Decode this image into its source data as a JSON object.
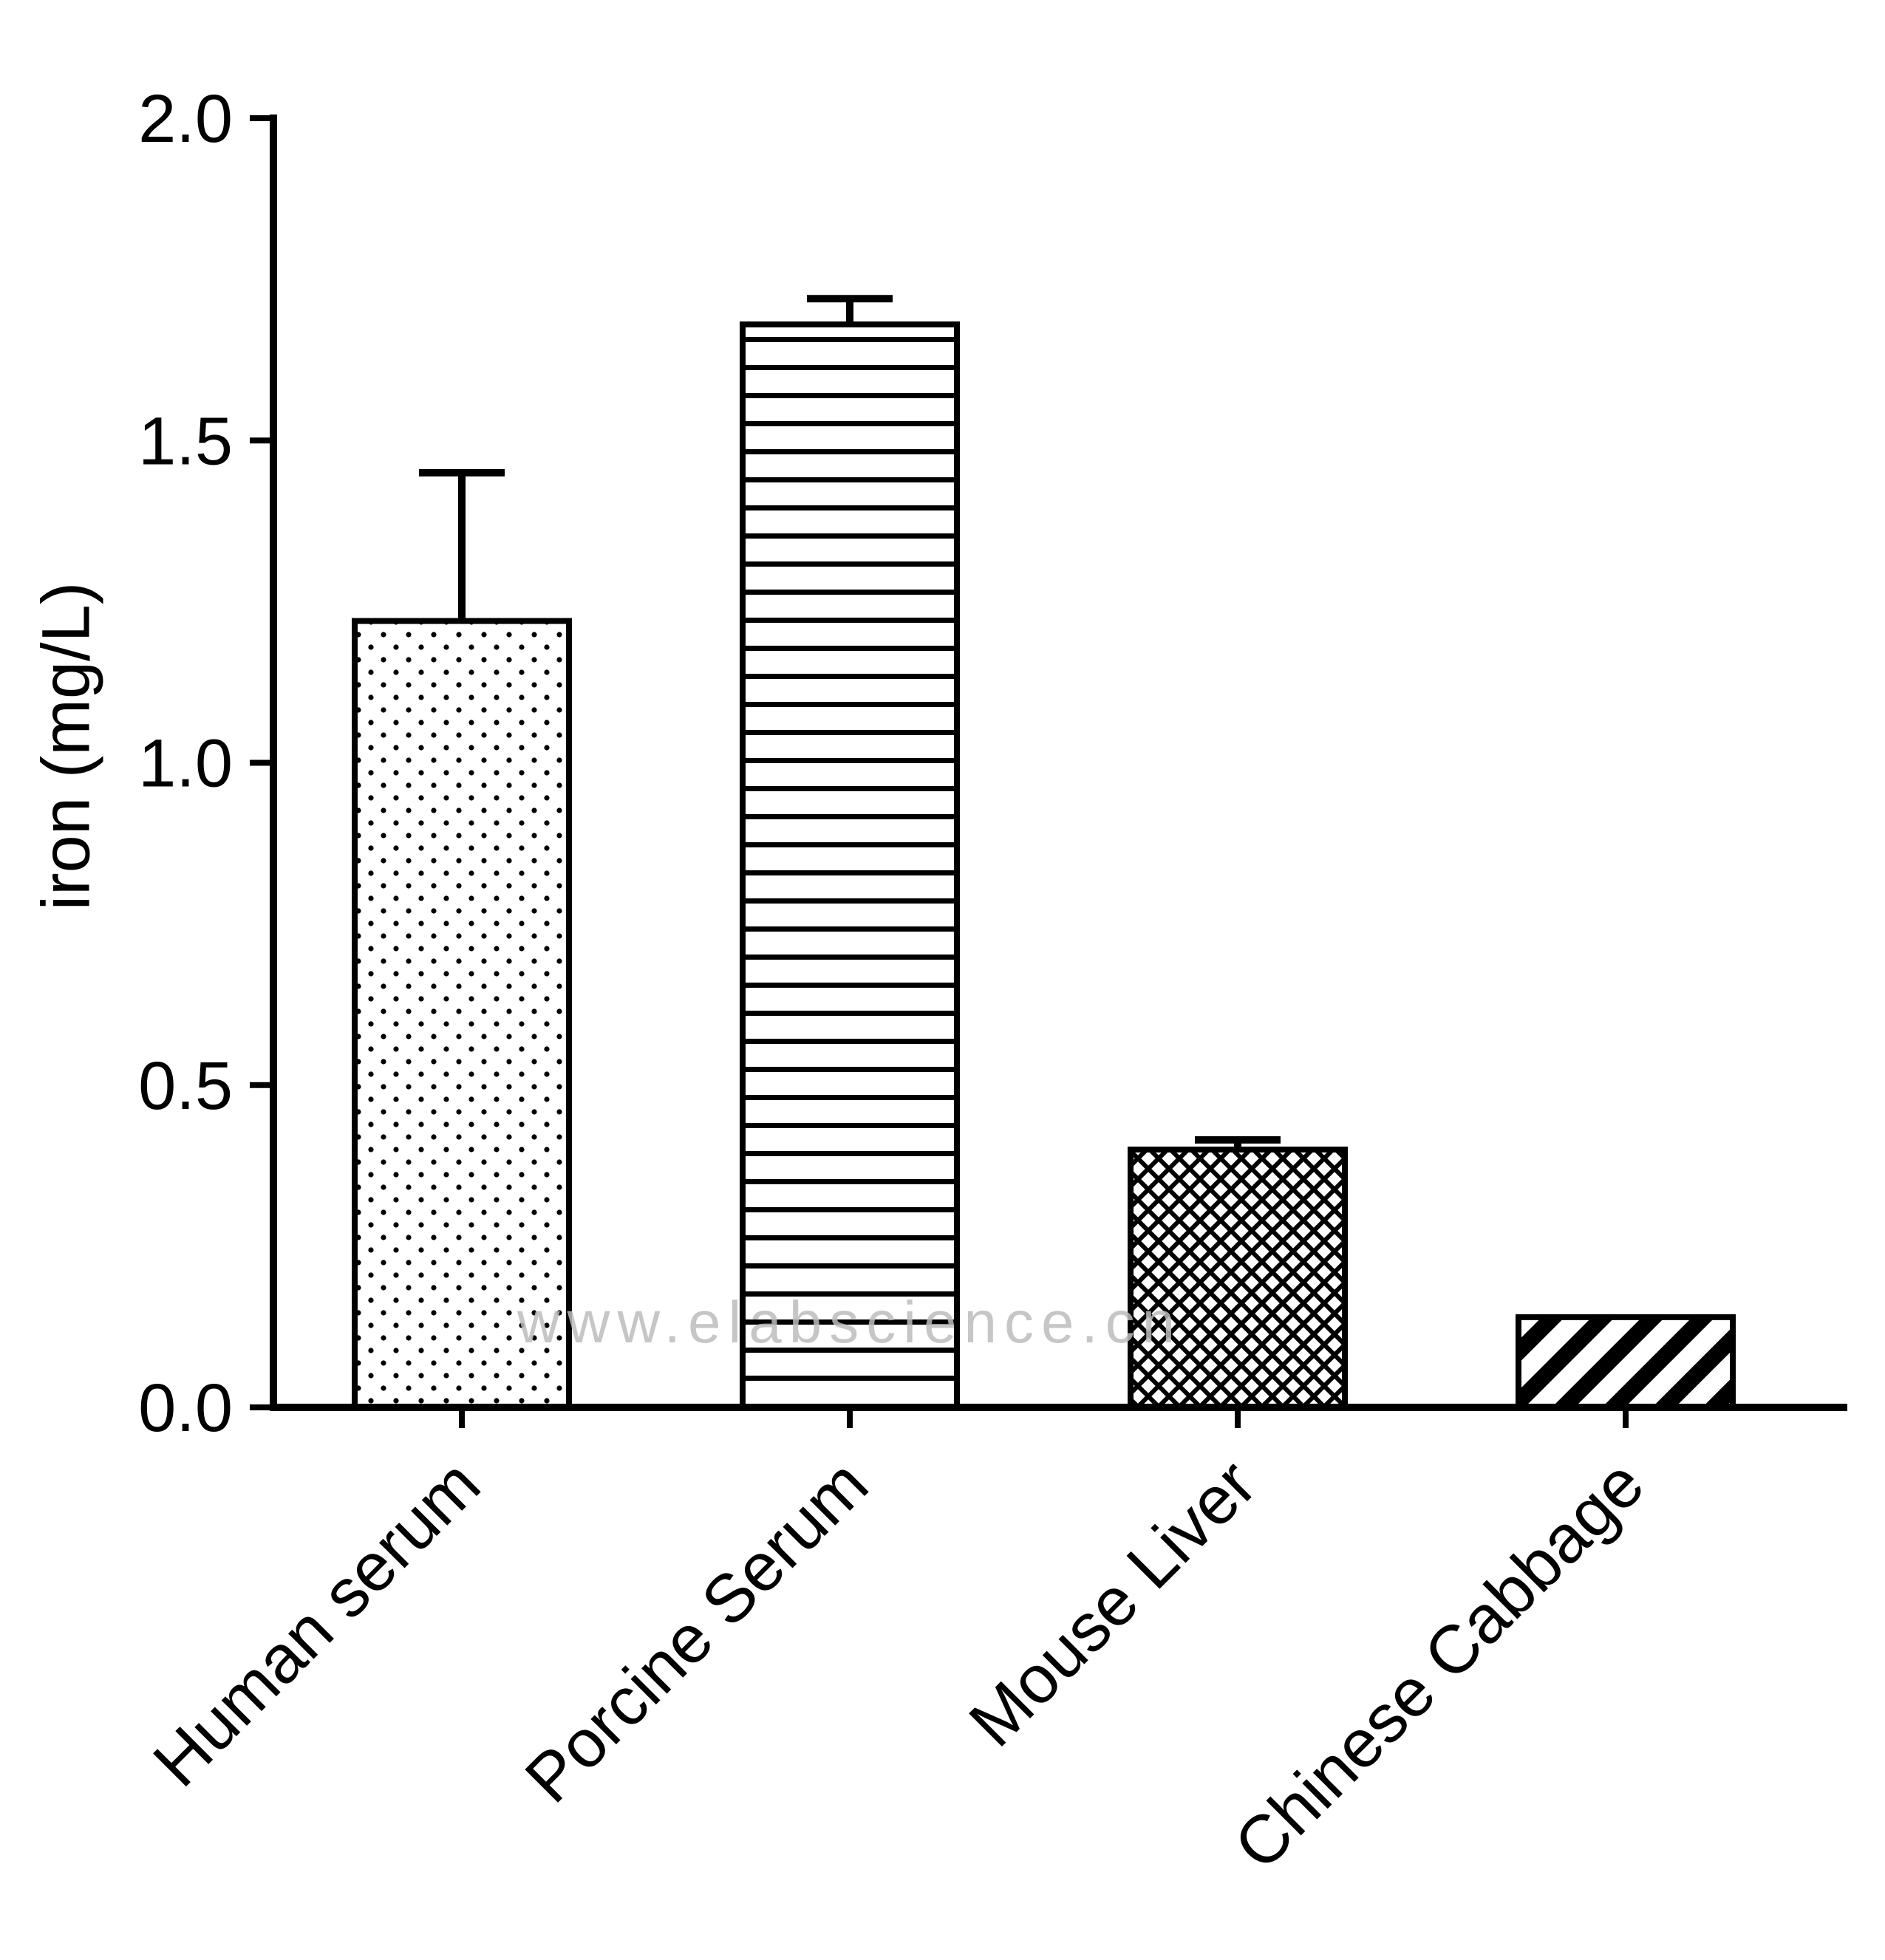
{
  "chart_data": {
    "type": "bar",
    "title": "",
    "xlabel": "",
    "ylabel": "iron (mg/L)",
    "categories": [
      "Human serum",
      "Porcine Serum",
      "Mouse Liver",
      "Chinese Cabbage"
    ],
    "values": [
      1.22,
      1.68,
      0.4,
      0.14
    ],
    "errors": [
      0.23,
      0.04,
      0.015,
      0
    ],
    "ylim": [
      0.0,
      2.0
    ],
    "yticks": [
      {
        "v": 0.0,
        "label": "0.0"
      },
      {
        "v": 0.5,
        "label": "0.5"
      },
      {
        "v": 1.0,
        "label": "1.0"
      },
      {
        "v": 1.5,
        "label": "1.5"
      },
      {
        "v": 2.0,
        "label": "2.0"
      }
    ],
    "grid": false,
    "legend": "none",
    "bar_patterns": [
      "dots",
      "horizontal-lines",
      "basket-weave",
      "diagonal-stripes"
    ],
    "bar_fill_color": "#ffffff",
    "bar_edge_color": "#000000",
    "axis_color": "#000000",
    "watermark": "www.elabscience.cn"
  }
}
